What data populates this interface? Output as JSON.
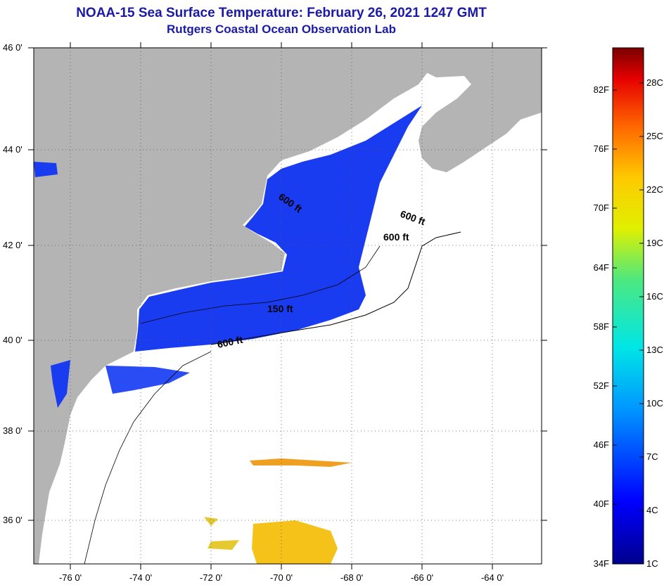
{
  "header": {
    "title": "NOAA-15 Sea Surface Temperature:  February 26, 2021 1247 GMT",
    "subtitle": "Rutgers Coastal Ocean Observation Lab"
  },
  "map": {
    "lat_labels": [
      "46 0'",
      "44 0'",
      "42 0'",
      "40 0'",
      "38 0'",
      "36 0'"
    ],
    "lon_labels": [
      "-76 0'",
      "-74 0'",
      "-72 0'",
      "-70 0'",
      "-68 0'",
      "-66 0'",
      "-64 0'"
    ],
    "contour_labels": [
      "600 ft",
      "600 ft",
      "600 ft",
      "150 ft",
      "600 ft"
    ],
    "colors": {
      "land": "#b4b4b4",
      "cold_water": "#1a3cf0",
      "warm_patch": "#f5c21a"
    }
  },
  "colorbar": {
    "fahrenheit": [
      "82F",
      "76F",
      "70F",
      "64F",
      "58F",
      "52F",
      "46F",
      "40F",
      "34F"
    ],
    "celsius": [
      "28C",
      "25C",
      "22C",
      "19C",
      "16C",
      "13C",
      "10C",
      "7C",
      "4C",
      "1C"
    ]
  }
}
